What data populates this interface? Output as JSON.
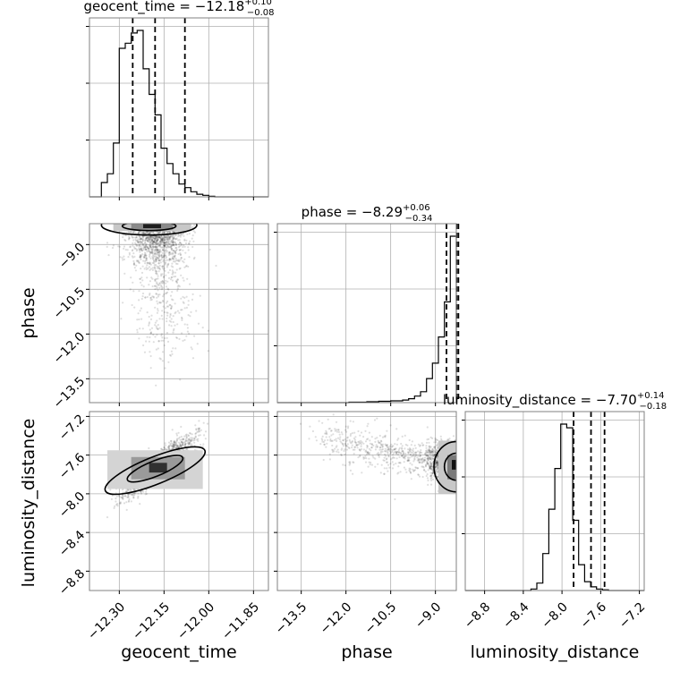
{
  "chart_data": {
    "type": "corner",
    "parameters": [
      "geocent_time",
      "phase",
      "luminosity_distance"
    ],
    "ranges": {
      "geocent_time": [
        -12.4,
        -11.8
      ],
      "phase": [
        -14.3,
        -8.3
      ],
      "luminosity_distance": [
        -9.0,
        -7.15
      ]
    },
    "ticks": {
      "geocent_time": [
        -12.3,
        -12.15,
        -12.0,
        -11.85
      ],
      "phase": [
        -13.5,
        -12.0,
        -10.5,
        -9.0
      ],
      "luminosity_distance": [
        -8.8,
        -8.4,
        -8.0,
        -7.6,
        -7.2
      ]
    },
    "tick_labels": {
      "geocent_time": [
        "−12.30",
        "−12.15",
        "−12.00",
        "−11.85"
      ],
      "phase": [
        "−13.5",
        "−12.0",
        "−10.5",
        "−9.0"
      ],
      "luminosity_distance": [
        "−8.8",
        "−8.4",
        "−8.0",
        "−7.6",
        "−7.2"
      ]
    },
    "titles": [
      {
        "name": "geocent_time",
        "median": "−12.18",
        "plus": "+0.10",
        "minus": "−0.08"
      },
      {
        "name": "phase",
        "median": "−8.29",
        "plus": "+0.06",
        "minus": "−0.34"
      },
      {
        "name": "luminosity_distance",
        "median": "−7.70",
        "plus": "+0.14",
        "minus": "−0.18"
      }
    ],
    "quantiles": {
      "geocent_time": [
        -12.255,
        -12.18,
        -12.08
      ],
      "phase": [
        -8.63,
        -8.29,
        -8.23
      ],
      "luminosity_distance": [
        -7.88,
        -7.7,
        -7.56
      ]
    },
    "histograms": {
      "geocent_time": {
        "edges_start": -12.4,
        "bin_width": 0.02,
        "counts": [
          0,
          0,
          28,
          45,
          105,
          290,
          300,
          320,
          325,
          250,
          200,
          160,
          95,
          65,
          45,
          25,
          18,
          10,
          5,
          3,
          1,
          0,
          0,
          0,
          0,
          0,
          0,
          0,
          0,
          0
        ]
      },
      "phase": {
        "edges_start": -14.3,
        "bin_width": 0.2,
        "counts": [
          0,
          0,
          0,
          0,
          0,
          0,
          0,
          0,
          0,
          0,
          0,
          0,
          1,
          1,
          1,
          2,
          2,
          3,
          3,
          4,
          4,
          6,
          9,
          15,
          25,
          55,
          90,
          150,
          230,
          380
        ]
      },
      "luminosity_distance": {
        "edges_start": -9.0,
        "bin_width": 0.0617,
        "counts": [
          0,
          0,
          0,
          0,
          0,
          0,
          0,
          0,
          0,
          0,
          0,
          2,
          10,
          50,
          110,
          165,
          225,
          220,
          95,
          35,
          12,
          5,
          2,
          1,
          0,
          0,
          0,
          0,
          0,
          0
        ]
      }
    },
    "grid": true
  },
  "labels": {
    "x": [
      "geocent_time",
      "phase",
      "luminosity_distance"
    ],
    "y": [
      "phase",
      "luminosity_distance"
    ]
  }
}
